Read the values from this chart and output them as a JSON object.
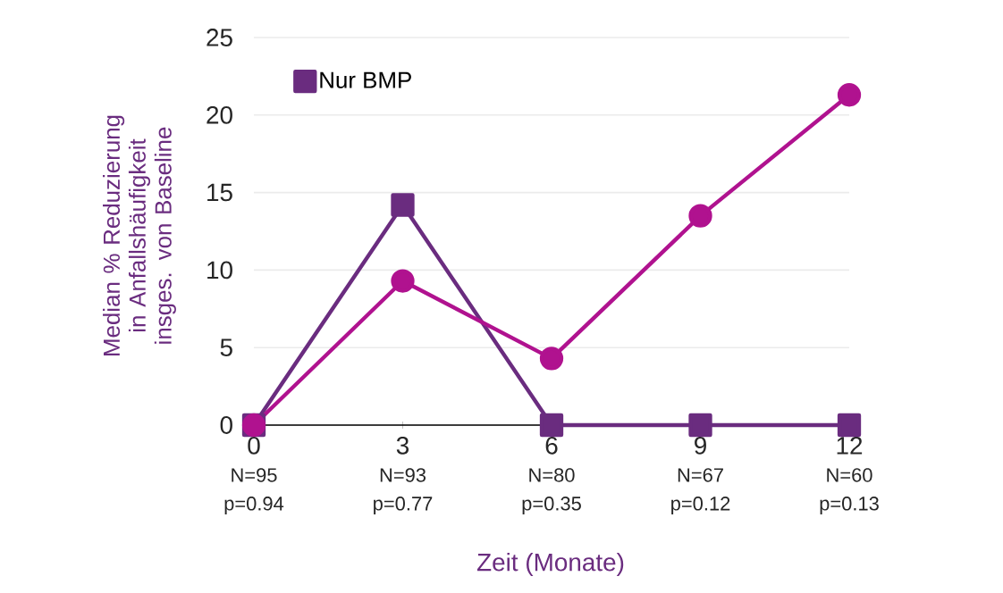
{
  "chart_data": {
    "type": "line",
    "xlabel": "Zeit (Monate)",
    "ylabel": "Median % Reduzierung in Anfallshäufigkeit insges. von Baseline",
    "x": [
      0,
      3,
      6,
      9,
      12
    ],
    "series": [
      {
        "name": "Nur BMP",
        "color": "#6a2c7f",
        "marker": "square",
        "values": [
          0,
          14.2,
          0,
          0,
          0
        ]
      },
      {
        "color": "#b0128f",
        "marker": "circle",
        "values": [
          0,
          9.3,
          4.3,
          13.5,
          21.3
        ]
      }
    ],
    "xlim": [
      0,
      12
    ],
    "ylim": [
      0,
      25
    ],
    "xticks": [
      0,
      3,
      6,
      9,
      12
    ],
    "yticks": [
      0,
      5,
      10,
      15,
      20,
      25
    ],
    "grid": "y",
    "legend": "top left",
    "annotations": [
      "N=95",
      "p=0.94",
      "N=93",
      "p=0.77",
      "N=80",
      "p=0.35",
      "N=67",
      "p=0.12",
      "N=60",
      "p=0.13"
    ]
  }
}
